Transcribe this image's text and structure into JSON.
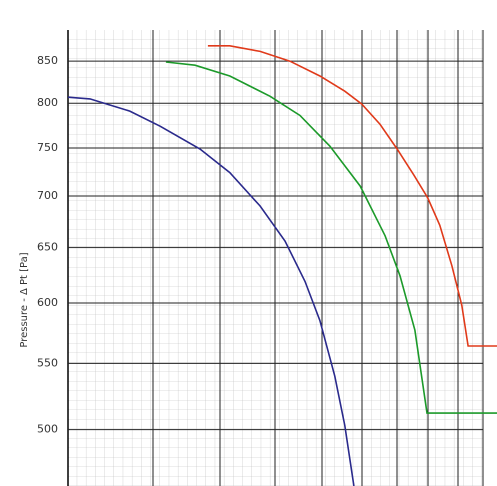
{
  "chart_data": {
    "type": "line",
    "y_label": "Pressure - Δ Pt [Pa]",
    "ylim": [
      461,
      889
    ],
    "yticks": [
      500,
      550,
      600,
      650,
      700,
      750,
      800,
      850
    ],
    "y_log": true,
    "grid": true,
    "xlim": [
      0,
      100
    ],
    "series": [
      {
        "color": "#2a2a8c",
        "x": [
          0,
          5.3,
          14.9,
          22.2,
          31.8,
          39.0,
          46.3,
          52.3,
          57.1,
          60.7,
          64.3,
          66.7,
          68.9
        ],
        "values": [
          807,
          805,
          791,
          774,
          749,
          724,
          690,
          656,
          619,
          585,
          540,
          503,
          461
        ]
      },
      {
        "color": "#1c9a2a",
        "x": [
          23.6,
          30.6,
          39.0,
          48.7,
          55.9,
          63.1,
          70.4,
          76.4,
          80.0,
          83.6,
          86.5,
          103.4
        ],
        "values": [
          849,
          845,
          832,
          808,
          786,
          752,
          710,
          661,
          624,
          577,
          512,
          512
        ]
      },
      {
        "color": "#e03a1a",
        "x": [
          33.7,
          39.0,
          46.3,
          53.5,
          60.7,
          66.7,
          70.8,
          75.2,
          79.3,
          83.4,
          86.7,
          89.6,
          92.5,
          94.9,
          96.4,
          103.4
        ],
        "values": [
          869,
          869,
          862,
          850,
          832,
          814,
          799,
          776,
          749,
          721,
          698,
          671,
          633,
          598,
          564,
          564
        ]
      }
    ]
  }
}
